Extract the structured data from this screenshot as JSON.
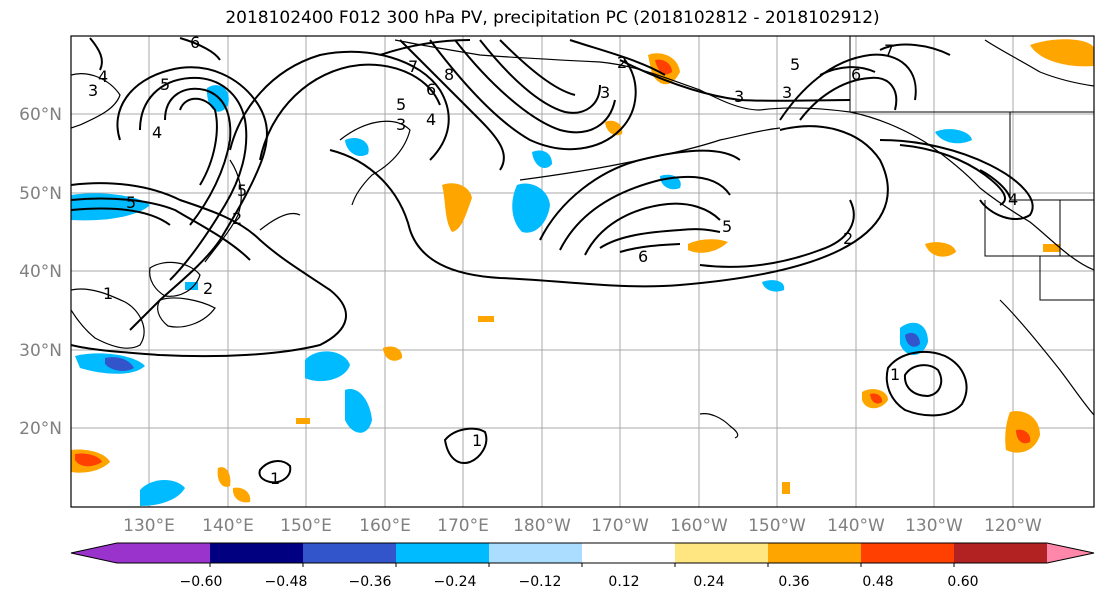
{
  "title": "2018102400 F012 300 hPa PV, precipitation PC (2018102812 - 2018102912)",
  "lon_labels": [
    "130°E",
    "140°E",
    "150°E",
    "160°E",
    "170°E",
    "180°W",
    "170°W",
    "160°W",
    "150°W",
    "140°W",
    "130°W",
    "120°W"
  ],
  "lat_labels": [
    "60°N",
    "50°N",
    "40°N",
    "30°N",
    "20°N"
  ],
  "colorbar": {
    "colors": [
      "#9933cc",
      "#000080",
      "#3355cc",
      "#00bbff",
      "#aaddff",
      "#ffffff",
      "#ffe680",
      "#ffa500",
      "#ff4000",
      "#b22222",
      "#ff88aa"
    ],
    "labels": [
      "−0.60",
      "−0.48",
      "−0.36",
      "−0.24",
      "−0.12",
      "0.12",
      "0.24",
      "0.36",
      "0.48",
      "0.60"
    ]
  },
  "contour_labels": [
    "6",
    "4",
    "3",
    "5",
    "4",
    "5",
    "1",
    "2",
    "8",
    "7",
    "6",
    "5",
    "4",
    "3",
    "2",
    "3",
    "3",
    "3",
    "5",
    "6",
    "7",
    "2",
    "6",
    "5",
    "2",
    "1",
    "1",
    "1",
    "5",
    "4"
  ]
}
